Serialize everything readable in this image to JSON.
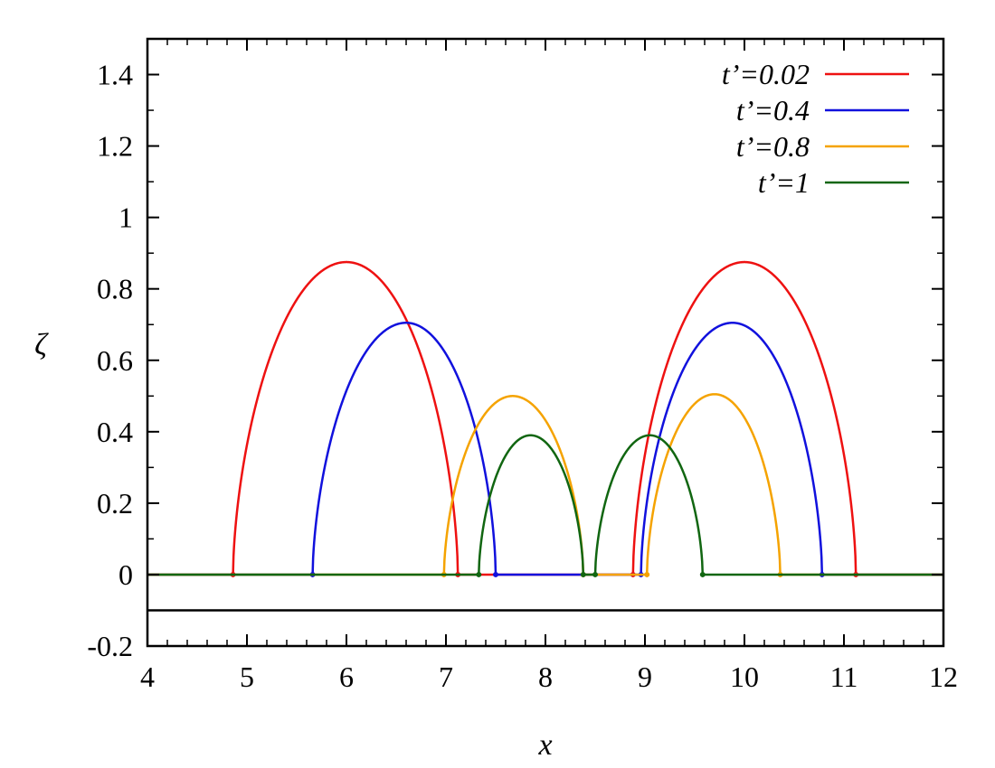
{
  "chart_data": {
    "type": "line",
    "title": "",
    "xlabel": "x",
    "ylabel": "ζ",
    "xlim": [
      4,
      12
    ],
    "ylim": [
      -0.2,
      1.5
    ],
    "grid": false,
    "legend_position": "top-right",
    "x_ticks": [
      4,
      5,
      6,
      7,
      8,
      9,
      10,
      11,
      12
    ],
    "x_tick_labels": [
      "4",
      "5",
      "6",
      "7",
      "8",
      "9",
      "10",
      "11",
      "12"
    ],
    "y_ticks": [
      -0.2,
      0,
      0.2,
      0.4,
      0.6,
      0.8,
      1,
      1.2,
      1.4
    ],
    "y_tick_labels": [
      "-0.2",
      "0",
      "0.2",
      "0.4",
      "0.6",
      "0.8",
      "1",
      "1.2",
      "1.4"
    ],
    "reference_lines": [
      {
        "y": -0.1,
        "color": "#000000"
      }
    ],
    "series": [
      {
        "name": "t’=0.02",
        "color": "#ee1111",
        "humps": [
          {
            "start": 4.86,
            "peak": 6.0,
            "end": 7.12,
            "height": 0.875
          },
          {
            "start": 8.88,
            "peak": 10.0,
            "end": 11.12,
            "height": 0.875
          }
        ]
      },
      {
        "name": "t’=0.4",
        "color": "#1111dd",
        "humps": [
          {
            "start": 5.66,
            "peak": 6.6,
            "end": 7.5,
            "height": 0.705
          },
          {
            "start": 8.96,
            "peak": 9.88,
            "end": 10.78,
            "height": 0.705
          }
        ]
      },
      {
        "name": "t’=0.8",
        "color": "#f5a300",
        "humps": [
          {
            "start": 6.98,
            "peak": 7.67,
            "end": 8.38,
            "height": 0.5
          },
          {
            "start": 9.02,
            "peak": 9.7,
            "end": 10.36,
            "height": 0.505
          }
        ]
      },
      {
        "name": "t’=1",
        "color": "#116611",
        "humps": [
          {
            "start": 7.33,
            "peak": 7.85,
            "end": 8.38,
            "height": 0.39
          },
          {
            "start": 8.5,
            "peak": 9.05,
            "end": 9.58,
            "height": 0.39
          }
        ]
      }
    ]
  }
}
